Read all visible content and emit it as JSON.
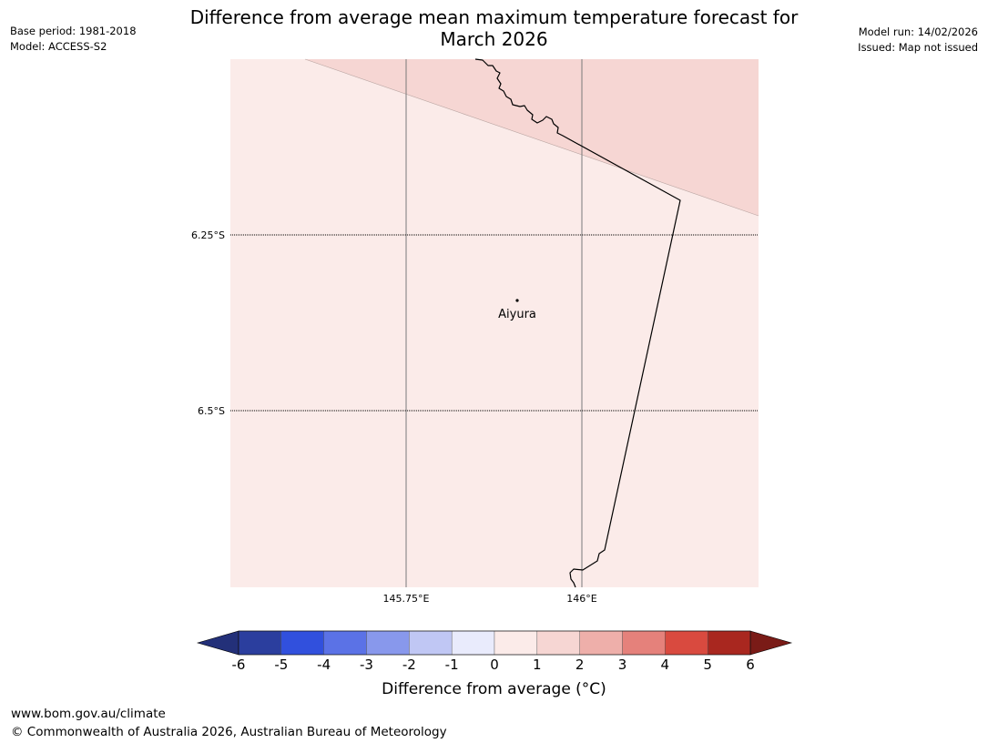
{
  "header": {
    "title_line1": "Difference from average mean maximum temperature forecast for",
    "title_line2": "March 2026",
    "base_period": "Base period: 1981-2018",
    "model": "Model: ACCESS-S2",
    "model_run": "Model run: 14/02/2026",
    "issued": "Issued: Map not issued"
  },
  "map": {
    "lat_labels": [
      "6.25°S",
      "6.5°S"
    ],
    "lon_labels": [
      "145.75°E",
      "146°E"
    ],
    "place": "Aiyura",
    "fill_colors": {
      "zone_0_to_1": "#fbebe9",
      "zone_1_to_2": "#f6d6d3"
    }
  },
  "colorbar": {
    "ticks": [
      "-6",
      "-5",
      "-4",
      "-3",
      "-2",
      "-1",
      "0",
      "1",
      "2",
      "3",
      "4",
      "5",
      "6"
    ],
    "colors": [
      "#2b3e9e",
      "#3150dd",
      "#5b72e6",
      "#8898ec",
      "#c0c7f4",
      "#e9ebfc",
      "#fbebe9",
      "#f6d6d3",
      "#eeafaa",
      "#e5817b",
      "#d94a3f",
      "#a9271f"
    ],
    "under_color": "#233079",
    "over_color": "#7a1b17",
    "label": "Difference from average (°C)"
  },
  "footer": {
    "website": "www.bom.gov.au/climate",
    "copyright": "© Commonwealth of Australia 2026, Australian Bureau of Meteorology"
  }
}
